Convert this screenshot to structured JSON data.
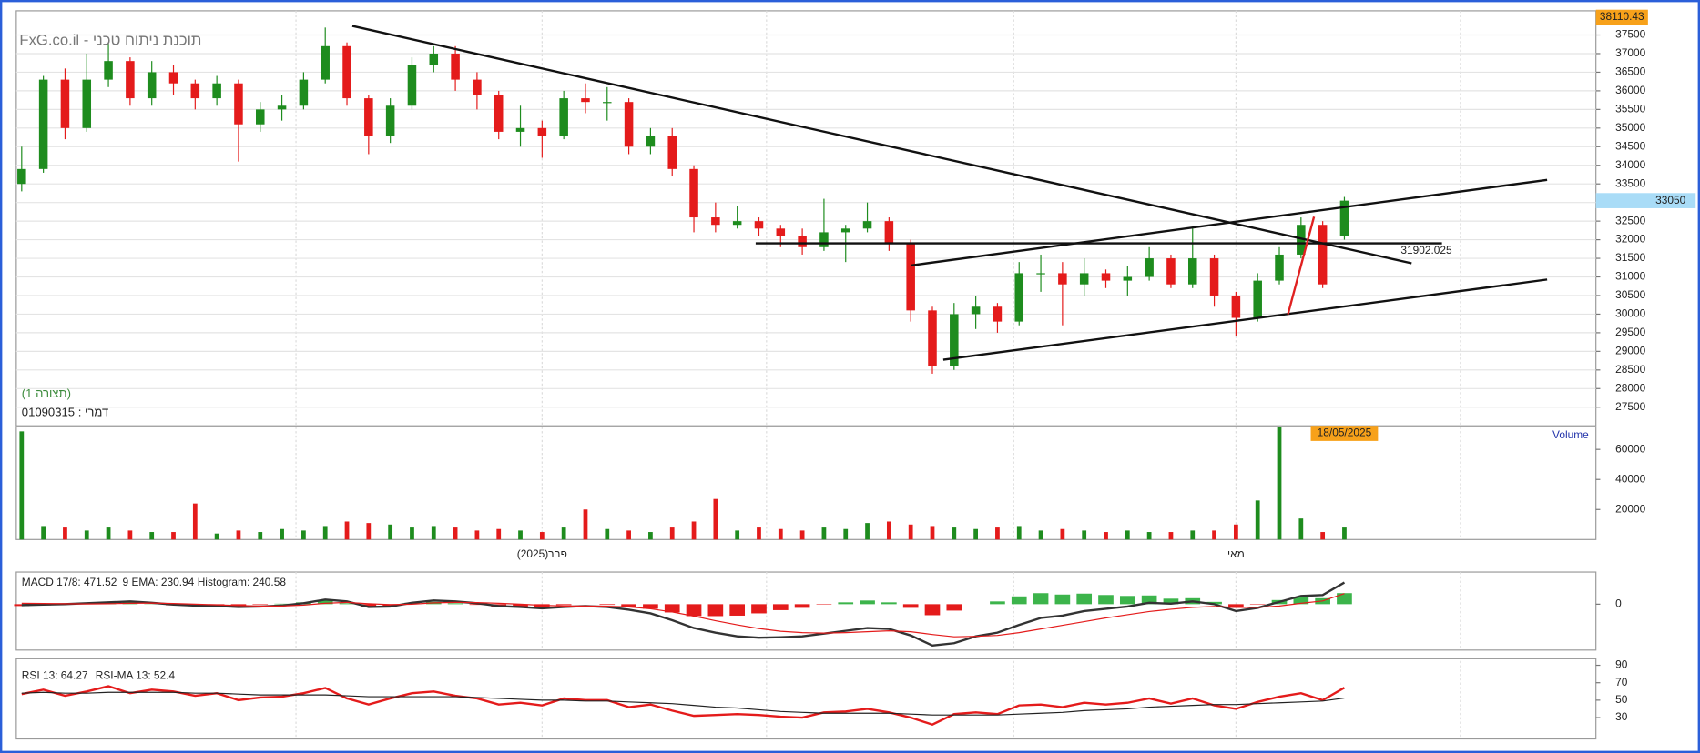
{
  "chart_data": [
    {
      "type": "candlestick",
      "title": "FxG.co.il - תוכנת ניתוח טכני",
      "annotations": [
        "(תצורה 1)",
        "דמרי : 01090315"
      ],
      "up_color": "#1e8c1e",
      "down_color": "#e41b1b",
      "open": [
        33500,
        33900,
        36300,
        35000,
        36300,
        36800,
        35800,
        36500,
        36200,
        35800,
        36200,
        35100,
        35500,
        35600,
        36300,
        37200,
        35800,
        34800,
        35600,
        36700,
        37000,
        36300,
        35900,
        34900,
        35000,
        34800,
        35800,
        35700,
        35700,
        34500,
        34800,
        33900,
        32600,
        32400,
        32500,
        32300,
        32100,
        31800,
        32200,
        32300,
        32500,
        31900,
        30100,
        28600,
        30000,
        30200,
        29800,
        31100,
        31100,
        30800,
        31100,
        30900,
        31000,
        31500,
        30800,
        31500,
        30500,
        29900,
        30900,
        31600,
        32400,
        32100
      ],
      "high": [
        34500,
        36400,
        36600,
        37000,
        37300,
        36900,
        36800,
        36700,
        36300,
        36400,
        36300,
        35700,
        35900,
        36500,
        37700,
        37300,
        35900,
        35800,
        36900,
        37200,
        37200,
        36500,
        36000,
        35600,
        35200,
        36000,
        36200,
        36100,
        35800,
        35000,
        35000,
        34000,
        33000,
        32900,
        32600,
        32400,
        32300,
        33100,
        32400,
        33000,
        32600,
        32000,
        30200,
        30300,
        30500,
        30300,
        31400,
        31600,
        31400,
        31500,
        31200,
        31300,
        31800,
        31600,
        32300,
        31600,
        30600,
        31100,
        31800,
        32600,
        32500,
        33150
      ],
      "low": [
        33300,
        33800,
        34700,
        34900,
        36100,
        35600,
        35600,
        35900,
        35500,
        35600,
        34100,
        34900,
        35200,
        35500,
        36200,
        35600,
        34300,
        34600,
        35500,
        36500,
        36000,
        35500,
        34700,
        34500,
        34200,
        34700,
        35400,
        35200,
        34300,
        34300,
        33700,
        32200,
        32200,
        32300,
        32100,
        31800,
        31600,
        31700,
        31400,
        32200,
        31700,
        29800,
        28400,
        28500,
        29600,
        29500,
        29700,
        30600,
        29700,
        30500,
        30700,
        30500,
        30900,
        30700,
        30700,
        30200,
        29400,
        29800,
        30800,
        31500,
        30700,
        32000
      ],
      "close": [
        33900,
        36300,
        35000,
        36300,
        36800,
        35800,
        36500,
        36200,
        35800,
        36200,
        35100,
        35500,
        35600,
        36300,
        37200,
        35800,
        34800,
        35600,
        36700,
        37000,
        36300,
        35900,
        34900,
        35000,
        34800,
        35800,
        35700,
        35700,
        34500,
        34800,
        33900,
        32600,
        32400,
        32500,
        32300,
        32100,
        31800,
        32200,
        32300,
        32500,
        31900,
        30100,
        28600,
        30000,
        30200,
        29800,
        31100,
        31100,
        30800,
        31100,
        30900,
        31000,
        31500,
        30800,
        31500,
        30500,
        29900,
        30900,
        31600,
        32400,
        30800,
        33050
      ],
      "ylim": [
        27000,
        38150
      ],
      "yticks": [
        27500,
        28000,
        28500,
        29000,
        29500,
        30000,
        30500,
        31000,
        31500,
        32000,
        32500,
        33000,
        33500,
        34000,
        34500,
        35000,
        35500,
        36000,
        36500,
        37000,
        37500
      ],
      "grid": true,
      "high_label": 38110.43,
      "last_price": 33050,
      "horizontal_line": 31902.025
    },
    {
      "type": "bar",
      "label": "Volume",
      "date_label": "18/05/2025",
      "x_labels": [
        "פבר(2025)",
        "מאי"
      ],
      "values": [
        72000,
        9000,
        8000,
        6000,
        8000,
        6000,
        5000,
        5000,
        24000,
        4000,
        6000,
        5000,
        7000,
        6000,
        9000,
        12000,
        11000,
        10000,
        8000,
        9000,
        8000,
        6000,
        7000,
        6000,
        5000,
        8000,
        20000,
        7000,
        6000,
        5000,
        8000,
        12000,
        27000,
        6000,
        8000,
        7000,
        6000,
        8000,
        7000,
        11000,
        12000,
        10000,
        9000,
        8000,
        7000,
        8000,
        9000,
        6000,
        7000,
        6000,
        5000,
        6000,
        5000,
        5000,
        6000,
        6000,
        10000,
        26000,
        75000,
        14000,
        5000,
        8000
      ],
      "ylim": [
        0,
        75000
      ],
      "yticks": [
        20000,
        40000,
        60000
      ],
      "grid": false
    },
    {
      "type": "macd",
      "series": [
        {
          "name": "MACD 17/8: 471.52",
          "color": "#333333",
          "values": [
            -20,
            -10,
            0,
            20,
            40,
            60,
            30,
            -10,
            -30,
            -40,
            -60,
            -50,
            -30,
            20,
            100,
            60,
            -60,
            -50,
            30,
            80,
            60,
            20,
            -40,
            -60,
            -90,
            -60,
            -40,
            -60,
            -120,
            -200,
            -350,
            -520,
            -620,
            -700,
            -730,
            -720,
            -700,
            -640,
            -580,
            -520,
            -540,
            -680,
            -900,
            -850,
            -700,
            -620,
            -450,
            -300,
            -250,
            -150,
            -100,
            -50,
            30,
            10,
            60,
            0,
            -150,
            -80,
            50,
            180,
            200,
            471.52
          ]
        },
        {
          "name": "9 EMA: 230.94",
          "color": "#e41b1b",
          "values": [
            20,
            15,
            10,
            5,
            10,
            20,
            25,
            15,
            0,
            -15,
            -30,
            -40,
            -40,
            -20,
            20,
            40,
            10,
            -10,
            0,
            30,
            40,
            35,
            20,
            0,
            -25,
            -40,
            -40,
            -45,
            -60,
            -100,
            -170,
            -260,
            -360,
            -450,
            -530,
            -590,
            -620,
            -630,
            -620,
            -600,
            -580,
            -600,
            -660,
            -710,
            -700,
            -680,
            -620,
            -540,
            -460,
            -380,
            -300,
            -230,
            -160,
            -110,
            -70,
            -50,
            -70,
            -70,
            -40,
            20,
            70,
            230.94
          ]
        }
      ],
      "histogram": {
        "name": "Histogram: 240.58",
        "positive_color": "#3cb44b",
        "negative_color": "#e41b1b",
        "values": [
          -40,
          -25,
          -10,
          15,
          30,
          40,
          5,
          -25,
          -30,
          -25,
          -30,
          -10,
          10,
          40,
          80,
          20,
          -70,
          -40,
          30,
          50,
          20,
          -15,
          -60,
          -60,
          -65,
          -20,
          0,
          -15,
          -60,
          -100,
          -180,
          -260,
          -260,
          -250,
          -200,
          -130,
          -80,
          -10,
          40,
          80,
          40,
          -80,
          -240,
          -140,
          0,
          60,
          170,
          240,
          210,
          230,
          200,
          180,
          190,
          120,
          130,
          50,
          -80,
          -10,
          90,
          160,
          130,
          240.58
        ]
      },
      "ylim": [
        -1000,
        700
      ],
      "yticks": [
        0
      ],
      "grid": false
    },
    {
      "type": "line",
      "series": [
        {
          "name": "RSI 13: 64.27",
          "color": "#e41b1b",
          "values": [
            57,
            62,
            55,
            60,
            66,
            58,
            62,
            60,
            55,
            58,
            50,
            53,
            54,
            58,
            64,
            52,
            45,
            52,
            58,
            60,
            55,
            52,
            45,
            47,
            44,
            52,
            50,
            50,
            42,
            45,
            38,
            32,
            33,
            34,
            33,
            31,
            30,
            36,
            37,
            40,
            36,
            30,
            22,
            34,
            36,
            34,
            44,
            45,
            42,
            47,
            45,
            47,
            52,
            46,
            52,
            44,
            40,
            48,
            54,
            58,
            50,
            64.27
          ]
        },
        {
          "name": "RSI-MA 13: 52.4",
          "color": "#222222",
          "values": [
            58,
            59,
            58,
            58,
            59,
            59,
            59,
            59,
            58,
            58,
            57,
            56,
            56,
            56,
            56,
            55,
            54,
            54,
            54,
            54,
            54,
            53,
            52,
            51,
            50,
            50,
            49,
            49,
            48,
            47,
            46,
            44,
            42,
            41,
            39,
            37,
            36,
            35,
            35,
            35,
            35,
            34,
            33,
            33,
            33,
            33,
            34,
            35,
            36,
            38,
            39,
            40,
            42,
            43,
            44,
            45,
            45,
            46,
            47,
            48,
            49,
            52.4
          ]
        }
      ],
      "ylim": [
        8,
        95
      ],
      "yticks": [
        30,
        50,
        70,
        90
      ],
      "grid": false
    }
  ]
}
